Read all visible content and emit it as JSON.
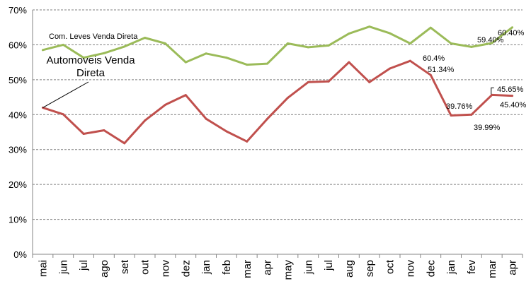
{
  "chart_data": {
    "type": "line",
    "title": "",
    "xlabel": "",
    "ylabel": "",
    "ylim": [
      0,
      70
    ],
    "y_ticks": [
      "0%",
      "10%",
      "20%",
      "30%",
      "40%",
      "50%",
      "60%",
      "70%"
    ],
    "grid": "horizontal dashed",
    "categories": [
      "mai",
      "jun",
      "jul",
      "ago",
      "set",
      "out",
      "nov",
      "dez",
      "jan",
      "feb",
      "mar",
      "apr",
      "may",
      "jun",
      "jul",
      "aug",
      "sep",
      "oct",
      "nov",
      "dec",
      "jan",
      "fev",
      "mar",
      "apr"
    ],
    "series": [
      {
        "name": "Com. Leves Venda Direta",
        "color": "#9bbb59",
        "values": [
          58.5,
          60.0,
          56.3,
          57.6,
          59.5,
          62.0,
          60.4,
          55.0,
          57.5,
          56.3,
          54.3,
          54.6,
          60.4,
          59.3,
          59.8,
          63.2,
          65.2,
          63.3,
          60.4,
          64.9,
          60.4,
          59.4,
          60.5,
          65.0
        ]
      },
      {
        "name": "Automoveis Venda Direta",
        "color": "#c0504d",
        "values": [
          42.0,
          40.1,
          34.5,
          35.5,
          31.8,
          38.3,
          42.8,
          45.6,
          38.8,
          35.2,
          32.3,
          38.8,
          44.8,
          49.3,
          49.5,
          55.0,
          49.3,
          53.2,
          55.4,
          51.34,
          39.76,
          39.99,
          45.65,
          45.4
        ]
      }
    ],
    "labels": {
      "com_leves": "Com. Leves Venda Direta",
      "automoveis": "Automoveis Venda\nDireta"
    },
    "data_labels": [
      {
        "text": "60.4%"
      },
      {
        "text": "59.40%"
      },
      {
        "text": "60.40%"
      },
      {
        "text": "51.34%"
      },
      {
        "text": "39.76%"
      },
      {
        "text": "39.99%"
      },
      {
        "text": "45.65%"
      },
      {
        "text": "45.40%"
      }
    ]
  }
}
